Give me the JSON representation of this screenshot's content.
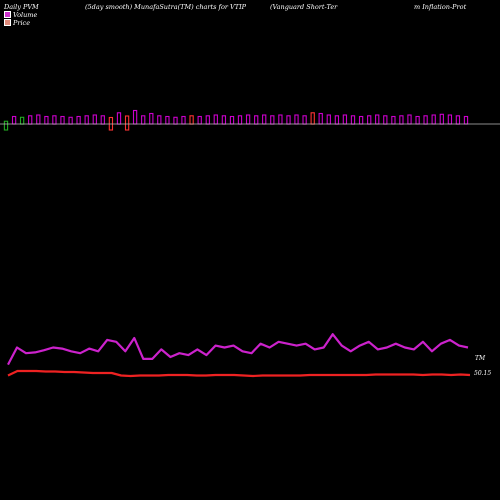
{
  "header": {
    "left": "Daily PVM",
    "smooth": "(5day smooth) MunafaSutra(TM) charts for VTIP",
    "name_part1": "(Vanguard Short-Ter",
    "name_part2": "m Inflation-Prot"
  },
  "legend": {
    "volume_label": "Volume",
    "price_label": "Price",
    "volume_color": "#cc33cc",
    "price_color": "#e08a7a"
  },
  "labels": {
    "pvm_tag": "TM",
    "price_tag": "50.15"
  },
  "colors": {
    "background": "#000000",
    "volume_up": "#cc00cc",
    "volume_down": "#ff3333",
    "volume_green": "#22aa22",
    "baseline": "#bbbbbb",
    "pvm_line": "#cc22cc",
    "price_line": "#ee2222"
  },
  "chart_data": {
    "type": "line",
    "volume": {
      "relative_values": [
        0.45,
        0.5,
        0.45,
        0.55,
        0.6,
        0.5,
        0.55,
        0.5,
        0.45,
        0.5,
        0.55,
        0.6,
        0.55,
        0.7,
        0.75,
        0.8,
        0.9,
        0.55,
        0.7,
        0.55,
        0.5,
        0.45,
        0.5,
        0.55,
        0.5,
        0.55,
        0.6,
        0.55,
        0.5,
        0.55,
        0.6,
        0.55,
        0.6,
        0.55,
        0.6,
        0.55,
        0.6,
        0.55,
        0.75,
        0.7,
        0.6,
        0.55,
        0.6,
        0.55,
        0.5,
        0.55,
        0.6,
        0.55,
        0.5,
        0.55,
        0.6,
        0.5,
        0.55,
        0.6,
        0.65,
        0.6,
        0.55,
        0.5
      ],
      "down_bars": [
        0,
        13,
        15
      ],
      "red_bars": [
        13,
        15,
        23,
        38
      ],
      "green_bars": [
        0,
        2
      ]
    },
    "pvm": {
      "relative_values": [
        0.3,
        0.75,
        0.6,
        0.62,
        0.68,
        0.75,
        0.72,
        0.65,
        0.6,
        0.72,
        0.65,
        0.95,
        0.9,
        0.65,
        1.0,
        0.45,
        0.45,
        0.7,
        0.5,
        0.6,
        0.55,
        0.7,
        0.55,
        0.8,
        0.75,
        0.8,
        0.65,
        0.6,
        0.85,
        0.75,
        0.9,
        0.85,
        0.8,
        0.85,
        0.7,
        0.75,
        1.1,
        0.8,
        0.65,
        0.8,
        0.9,
        0.7,
        0.75,
        0.85,
        0.75,
        0.7,
        0.9,
        0.65,
        0.85,
        0.95,
        0.8,
        0.75
      ]
    },
    "price": {
      "relative_values": [
        0.2,
        0.65,
        0.65,
        0.65,
        0.6,
        0.6,
        0.55,
        0.55,
        0.5,
        0.45,
        0.45,
        0.45,
        0.2,
        0.15,
        0.2,
        0.2,
        0.2,
        0.25,
        0.25,
        0.25,
        0.2,
        0.2,
        0.25,
        0.25,
        0.25,
        0.2,
        0.15,
        0.2,
        0.2,
        0.2,
        0.2,
        0.2,
        0.25,
        0.25,
        0.25,
        0.25,
        0.25,
        0.25,
        0.25,
        0.3,
        0.3,
        0.3,
        0.3,
        0.3,
        0.25,
        0.3,
        0.3,
        0.25,
        0.3,
        0.25
      ]
    }
  }
}
